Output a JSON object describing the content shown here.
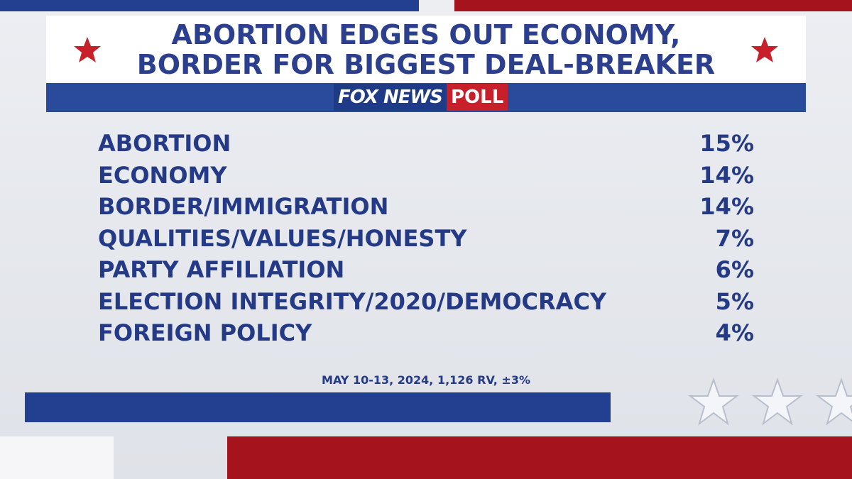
{
  "header": {
    "title_lines": [
      "ABORTION EDGES OUT ECONOMY,",
      "BORDER FOR BIGGEST DEAL-BREAKER"
    ],
    "logo": {
      "brand": "FOX NEWS",
      "label": "POLL"
    }
  },
  "table": {
    "rows": [
      {
        "label": "ABORTION",
        "value": "15%"
      },
      {
        "label": "ECONOMY",
        "value": "14%"
      },
      {
        "label": "BORDER/IMMIGRATION",
        "value": "14%"
      },
      {
        "label": "QUALITIES/VALUES/HONESTY",
        "value": "7%"
      },
      {
        "label": "PARTY AFFILIATION",
        "value": "6%"
      },
      {
        "label": "ELECTION INTEGRITY/2020/DEMOCRACY",
        "value": "5%"
      },
      {
        "label": "FOREIGN POLICY",
        "value": "4%"
      }
    ]
  },
  "footer": {
    "note": "MAY 10-13, 2024, 1,126 RV, ±3%"
  }
}
